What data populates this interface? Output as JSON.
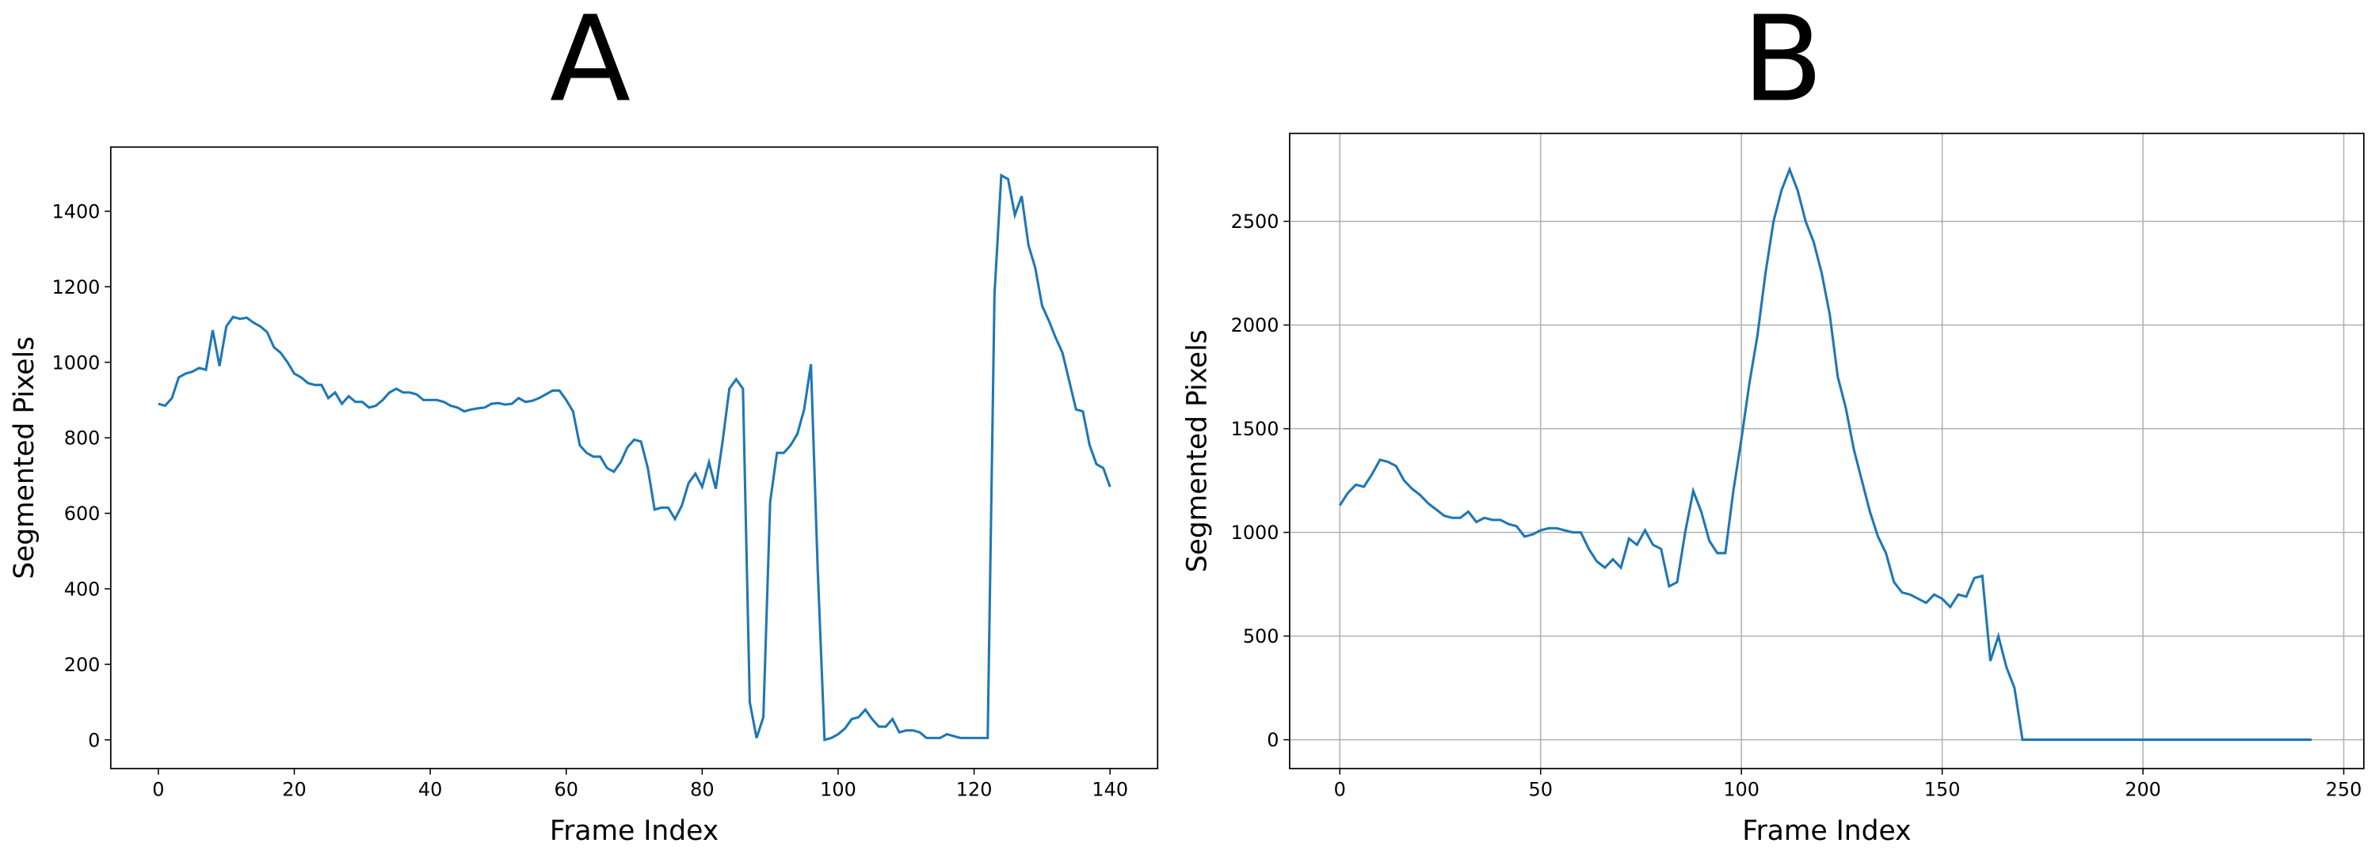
{
  "chart_data": [
    {
      "type": "line",
      "title": "A",
      "xlabel": "Frame Index",
      "ylabel": "Segmented Pixels",
      "grid": false,
      "xlim": [
        -7,
        147
      ],
      "ylim": [
        -76,
        1570
      ],
      "xticks": [
        0,
        20,
        40,
        60,
        80,
        100,
        120,
        140
      ],
      "yticks": [
        0,
        200,
        400,
        600,
        800,
        1000,
        1200,
        1400
      ],
      "x": [
        0,
        1,
        2,
        3,
        4,
        5,
        6,
        7,
        8,
        9,
        10,
        11,
        12,
        13,
        14,
        15,
        16,
        17,
        18,
        19,
        20,
        21,
        22,
        23,
        24,
        25,
        26,
        27,
        28,
        29,
        30,
        31,
        32,
        33,
        34,
        35,
        36,
        37,
        38,
        39,
        40,
        41,
        42,
        43,
        44,
        45,
        46,
        47,
        48,
        49,
        50,
        51,
        52,
        53,
        54,
        55,
        56,
        57,
        58,
        59,
        60,
        61,
        62,
        63,
        64,
        65,
        66,
        67,
        68,
        69,
        70,
        71,
        72,
        73,
        74,
        75,
        76,
        77,
        78,
        79,
        80,
        81,
        82,
        83,
        84,
        85,
        86,
        87,
        88,
        89,
        90,
        91,
        92,
        93,
        94,
        95,
        96,
        97,
        98,
        99,
        100,
        101,
        102,
        103,
        104,
        105,
        106,
        107,
        108,
        109,
        110,
        111,
        112,
        113,
        114,
        115,
        116,
        117,
        118,
        119,
        120,
        121,
        122,
        123,
        124,
        125,
        126,
        127,
        128,
        129,
        130,
        131,
        132,
        133,
        134,
        135,
        136,
        137,
        138,
        139,
        140
      ],
      "series": [
        {
          "name": "Segmented Pixels",
          "color": "#1f77b4",
          "values": [
            890,
            885,
            905,
            960,
            970,
            975,
            985,
            980,
            1085,
            990,
            1095,
            1120,
            1115,
            1118,
            1105,
            1095,
            1080,
            1040,
            1025,
            1000,
            970,
            960,
            945,
            940,
            940,
            905,
            920,
            890,
            910,
            895,
            895,
            880,
            885,
            900,
            920,
            930,
            920,
            920,
            915,
            900,
            900,
            900,
            895,
            885,
            880,
            870,
            875,
            878,
            880,
            890,
            892,
            888,
            890,
            905,
            895,
            898,
            905,
            915,
            925,
            925,
            900,
            870,
            780,
            760,
            750,
            750,
            720,
            710,
            735,
            775,
            795,
            790,
            720,
            610,
            615,
            615,
            585,
            620,
            680,
            705,
            670,
            735,
            665,
            790,
            930,
            955,
            930,
            100,
            5,
            60,
            630,
            760,
            760,
            780,
            810,
            875,
            995,
            450,
            0,
            5,
            15,
            30,
            55,
            60,
            80,
            55,
            35,
            35,
            55,
            20,
            25,
            25,
            20,
            5,
            5,
            5,
            15,
            10,
            5,
            5,
            5,
            5,
            5,
            1180,
            1495,
            1485,
            1390,
            1440,
            1310,
            1250,
            1150,
            1110,
            1065,
            1025,
            950,
            875,
            870,
            780,
            730,
            720,
            670
          ]
        }
      ]
    },
    {
      "type": "line",
      "title": "B",
      "xlabel": "Frame Index",
      "ylabel": "Segmented Pixels",
      "grid": true,
      "xlim": [
        -12.5,
        255
      ],
      "ylim": [
        -139,
        2924
      ],
      "xticks": [
        0,
        50,
        100,
        150,
        200,
        250
      ],
      "yticks": [
        0,
        500,
        1000,
        1500,
        2000,
        2500
      ],
      "x": [
        0,
        2,
        4,
        6,
        8,
        10,
        12,
        14,
        16,
        18,
        20,
        22,
        24,
        26,
        28,
        30,
        32,
        34,
        36,
        38,
        40,
        42,
        44,
        46,
        48,
        50,
        52,
        54,
        56,
        58,
        60,
        62,
        64,
        66,
        68,
        70,
        72,
        74,
        76,
        78,
        80,
        82,
        84,
        86,
        88,
        90,
        92,
        94,
        96,
        98,
        100,
        102,
        104,
        106,
        108,
        110,
        112,
        114,
        116,
        118,
        120,
        122,
        124,
        126,
        128,
        130,
        132,
        134,
        136,
        138,
        140,
        142,
        144,
        146,
        148,
        150,
        152,
        154,
        156,
        158,
        160,
        162,
        164,
        166,
        168,
        170,
        242
      ],
      "series": [
        {
          "name": "Segmented Pixels",
          "color": "#1f77b4",
          "values": [
            1130,
            1190,
            1230,
            1220,
            1280,
            1350,
            1340,
            1320,
            1250,
            1210,
            1180,
            1140,
            1110,
            1080,
            1070,
            1070,
            1100,
            1050,
            1070,
            1060,
            1060,
            1040,
            1030,
            980,
            990,
            1010,
            1020,
            1020,
            1010,
            1000,
            1000,
            920,
            860,
            830,
            870,
            830,
            970,
            940,
            1010,
            940,
            920,
            740,
            760,
            1000,
            1200,
            1100,
            960,
            900,
            900,
            1200,
            1450,
            1720,
            1950,
            2250,
            2500,
            2650,
            2750,
            2650,
            2500,
            2400,
            2250,
            2050,
            1750,
            1600,
            1400,
            1250,
            1100,
            980,
            900,
            760,
            710,
            700,
            680,
            660,
            700,
            680,
            640,
            700,
            690,
            780,
            790,
            380,
            500,
            350,
            250,
            0,
            0
          ]
        }
      ]
    }
  ]
}
